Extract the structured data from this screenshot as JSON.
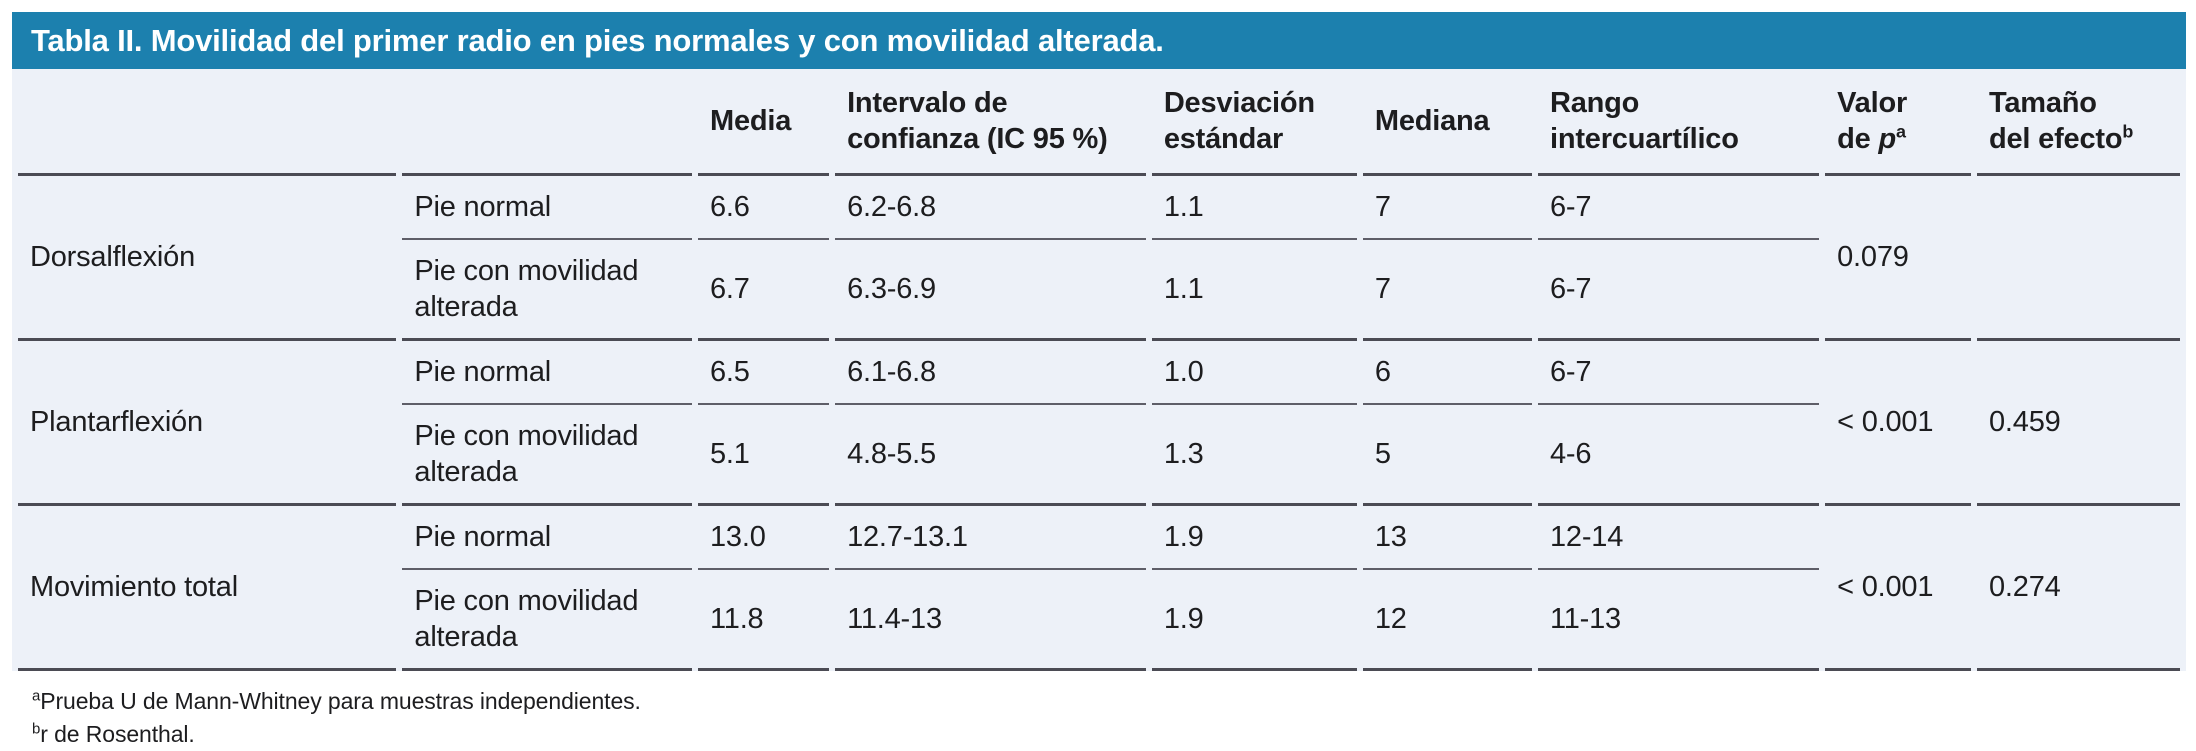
{
  "title": "Tabla II. Movilidad del primer radio en pies normales y con movilidad alterada.",
  "colors": {
    "title_bar": "#1c80ae",
    "table_bg": "#edf1f8",
    "rule_dark": "#4b4b54",
    "rule_inner": "#5e5e68",
    "text": "#1d1d1f"
  },
  "table": {
    "columns": {
      "media": "Media",
      "ic": "Intervalo de confianza (IC 95 %)",
      "sd": "Desviación estándar",
      "median": "Mediana",
      "iqr": "Rango intercuartílico",
      "p": {
        "line1": "Valor",
        "line2": "de ",
        "italic": "p",
        "sup": "a"
      },
      "effect": {
        "line1": "Tamaño",
        "line2": "del efecto",
        "sup": "b"
      }
    },
    "sections": [
      {
        "label": "Dorsalflexión",
        "rows": [
          {
            "group": "Pie normal",
            "media": "6.6",
            "ic": "6.2-6.8",
            "sd": "1.1",
            "median": "7",
            "iqr": "6-7"
          },
          {
            "group": "Pie con movilidad alterada",
            "media": "6.7",
            "ic": "6.3-6.9",
            "sd": "1.1",
            "median": "7",
            "iqr": "6-7"
          }
        ],
        "p": "0.079",
        "effect": ""
      },
      {
        "label": "Plantarflexión",
        "rows": [
          {
            "group": "Pie normal",
            "media": "6.5",
            "ic": "6.1-6.8",
            "sd": "1.0",
            "median": "6",
            "iqr": "6-7"
          },
          {
            "group": "Pie con movilidad alterada",
            "media": "5.1",
            "ic": "4.8-5.5",
            "sd": "1.3",
            "median": "5",
            "iqr": "4-6"
          }
        ],
        "p": "< 0.001",
        "effect": "0.459"
      },
      {
        "label": "Movimiento total",
        "rows": [
          {
            "group": "Pie normal",
            "media": "13.0",
            "ic": "12.7-13.1",
            "sd": "1.9",
            "median": "13",
            "iqr": "12-14"
          },
          {
            "group": "Pie con movilidad alterada",
            "media": "11.8",
            "ic": "11.4-13",
            "sd": "1.9",
            "median": "12",
            "iqr": "11-13"
          }
        ],
        "p": "< 0.001",
        "effect": "0.274"
      }
    ]
  },
  "footnotes": [
    {
      "marker": "a",
      "text": "Prueba U de Mann-Whitney para muestras independientes."
    },
    {
      "marker": "b",
      "text": "r de Rosenthal."
    }
  ]
}
